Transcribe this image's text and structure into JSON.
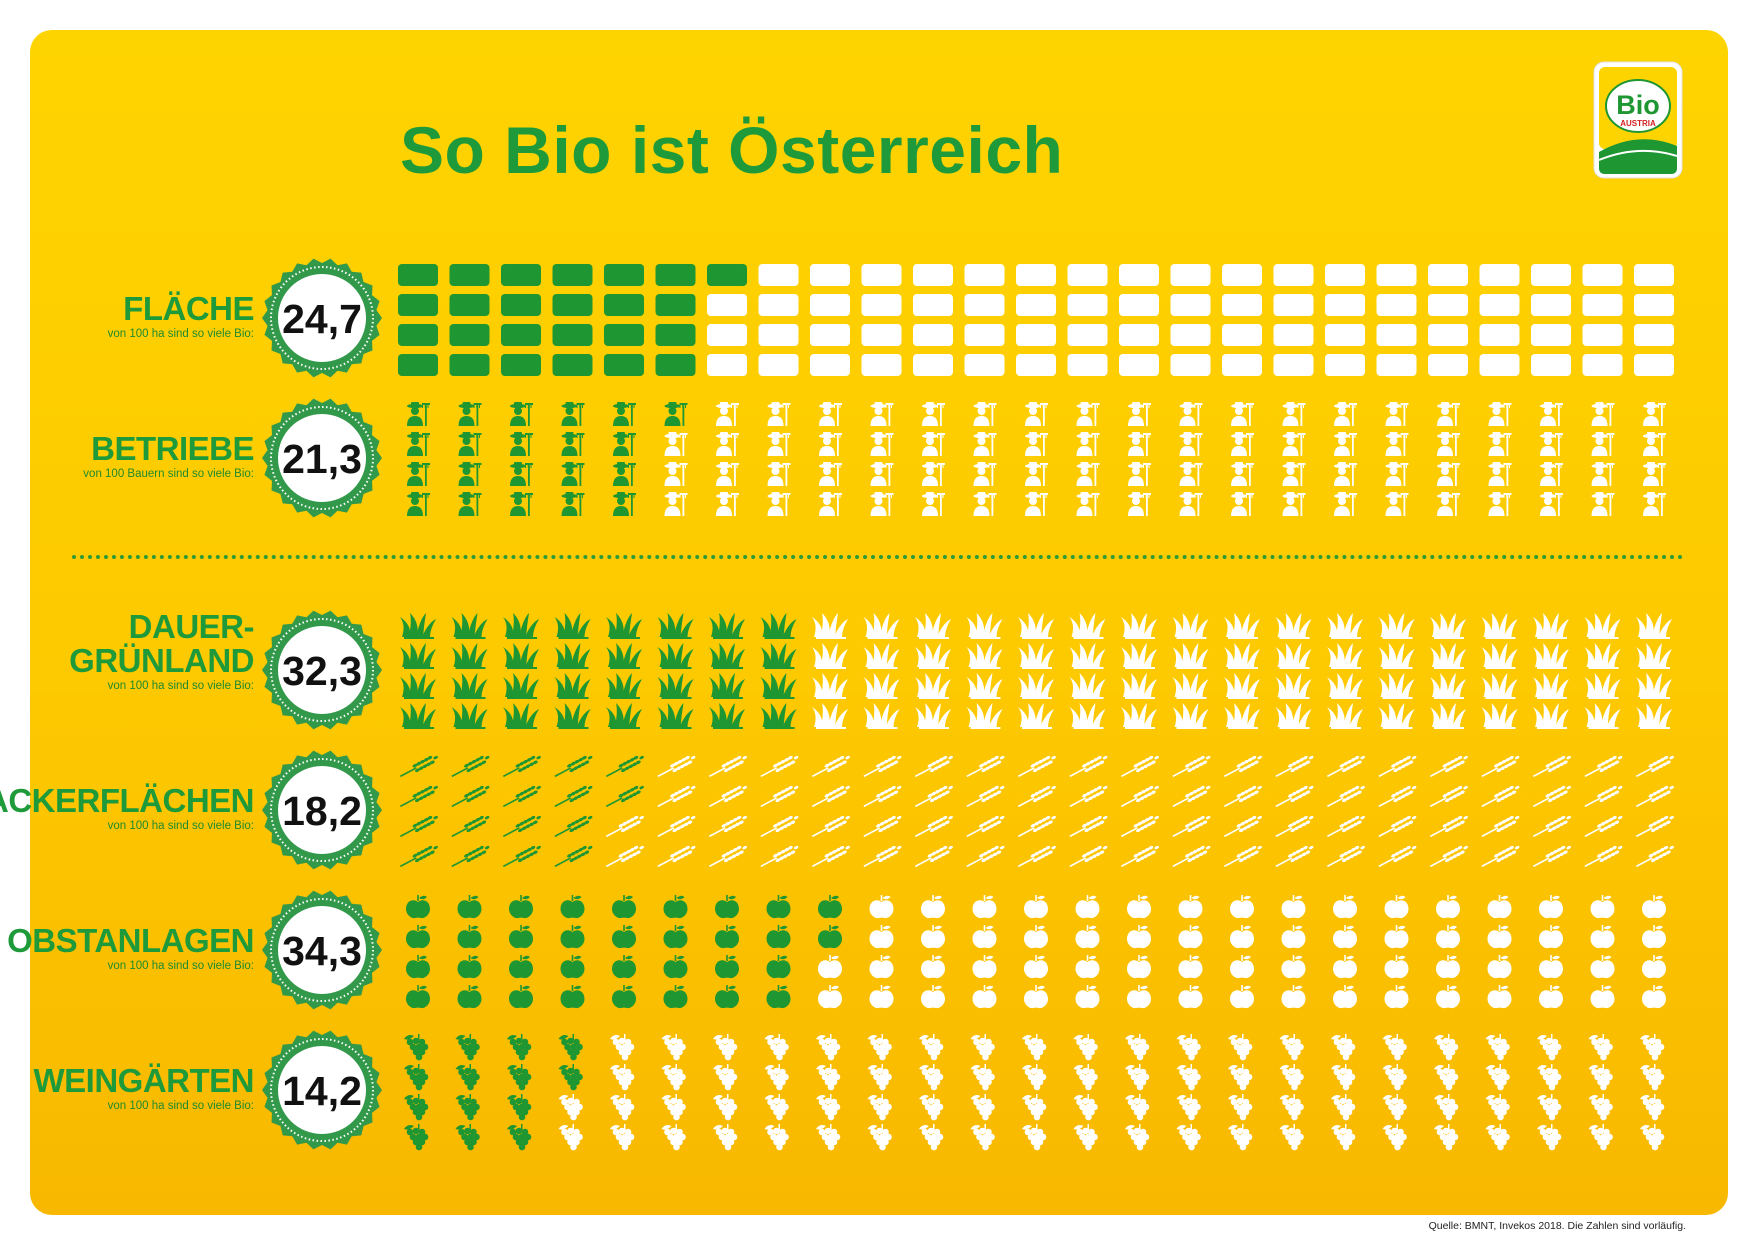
{
  "title": "So Bio ist Österreich",
  "logo": {
    "line1": "Bio",
    "line2": "AUSTRIA"
  },
  "source": "Quelle: BMNT, Invekos 2018. Die Zahlen sind vorläufig.",
  "colors": {
    "background": "#fdc900",
    "bio": "#1e9632",
    "conventional": "#ffffff",
    "title": "#1f9a3a"
  },
  "chart_data": {
    "type": "pictogram",
    "units_per_icon": 1,
    "total_icons_per_row": 100,
    "rows": [
      {
        "label": "FLÄCHE",
        "subtitle": "von 100 ha sind so viele Bio:",
        "value": 24.7,
        "value_text": "24,7",
        "icon": "area-square-icon"
      },
      {
        "label": "BETRIEBE",
        "subtitle": "von 100 Bauern sind so viele Bio:",
        "value": 21.3,
        "value_text": "21,3",
        "icon": "farmer-icon"
      },
      {
        "label": "DAUER-\nGRÜNLAND",
        "subtitle": "von 100 ha sind so viele Bio:",
        "value": 32.3,
        "value_text": "32,3",
        "icon": "grass-icon"
      },
      {
        "label": "ACKERFLÄCHEN",
        "subtitle": "von 100 ha sind so viele Bio:",
        "value": 18.2,
        "value_text": "18,2",
        "icon": "wheat-icon"
      },
      {
        "label": "OBSTANLAGEN",
        "subtitle": "von 100 ha sind so viele Bio:",
        "value": 34.3,
        "value_text": "34,3",
        "icon": "apple-icon"
      },
      {
        "label": "WEINGÄRTEN",
        "subtitle": "von 100 ha sind so viele Bio:",
        "value": 14.2,
        "value_text": "14,2",
        "icon": "grapes-icon"
      }
    ]
  }
}
